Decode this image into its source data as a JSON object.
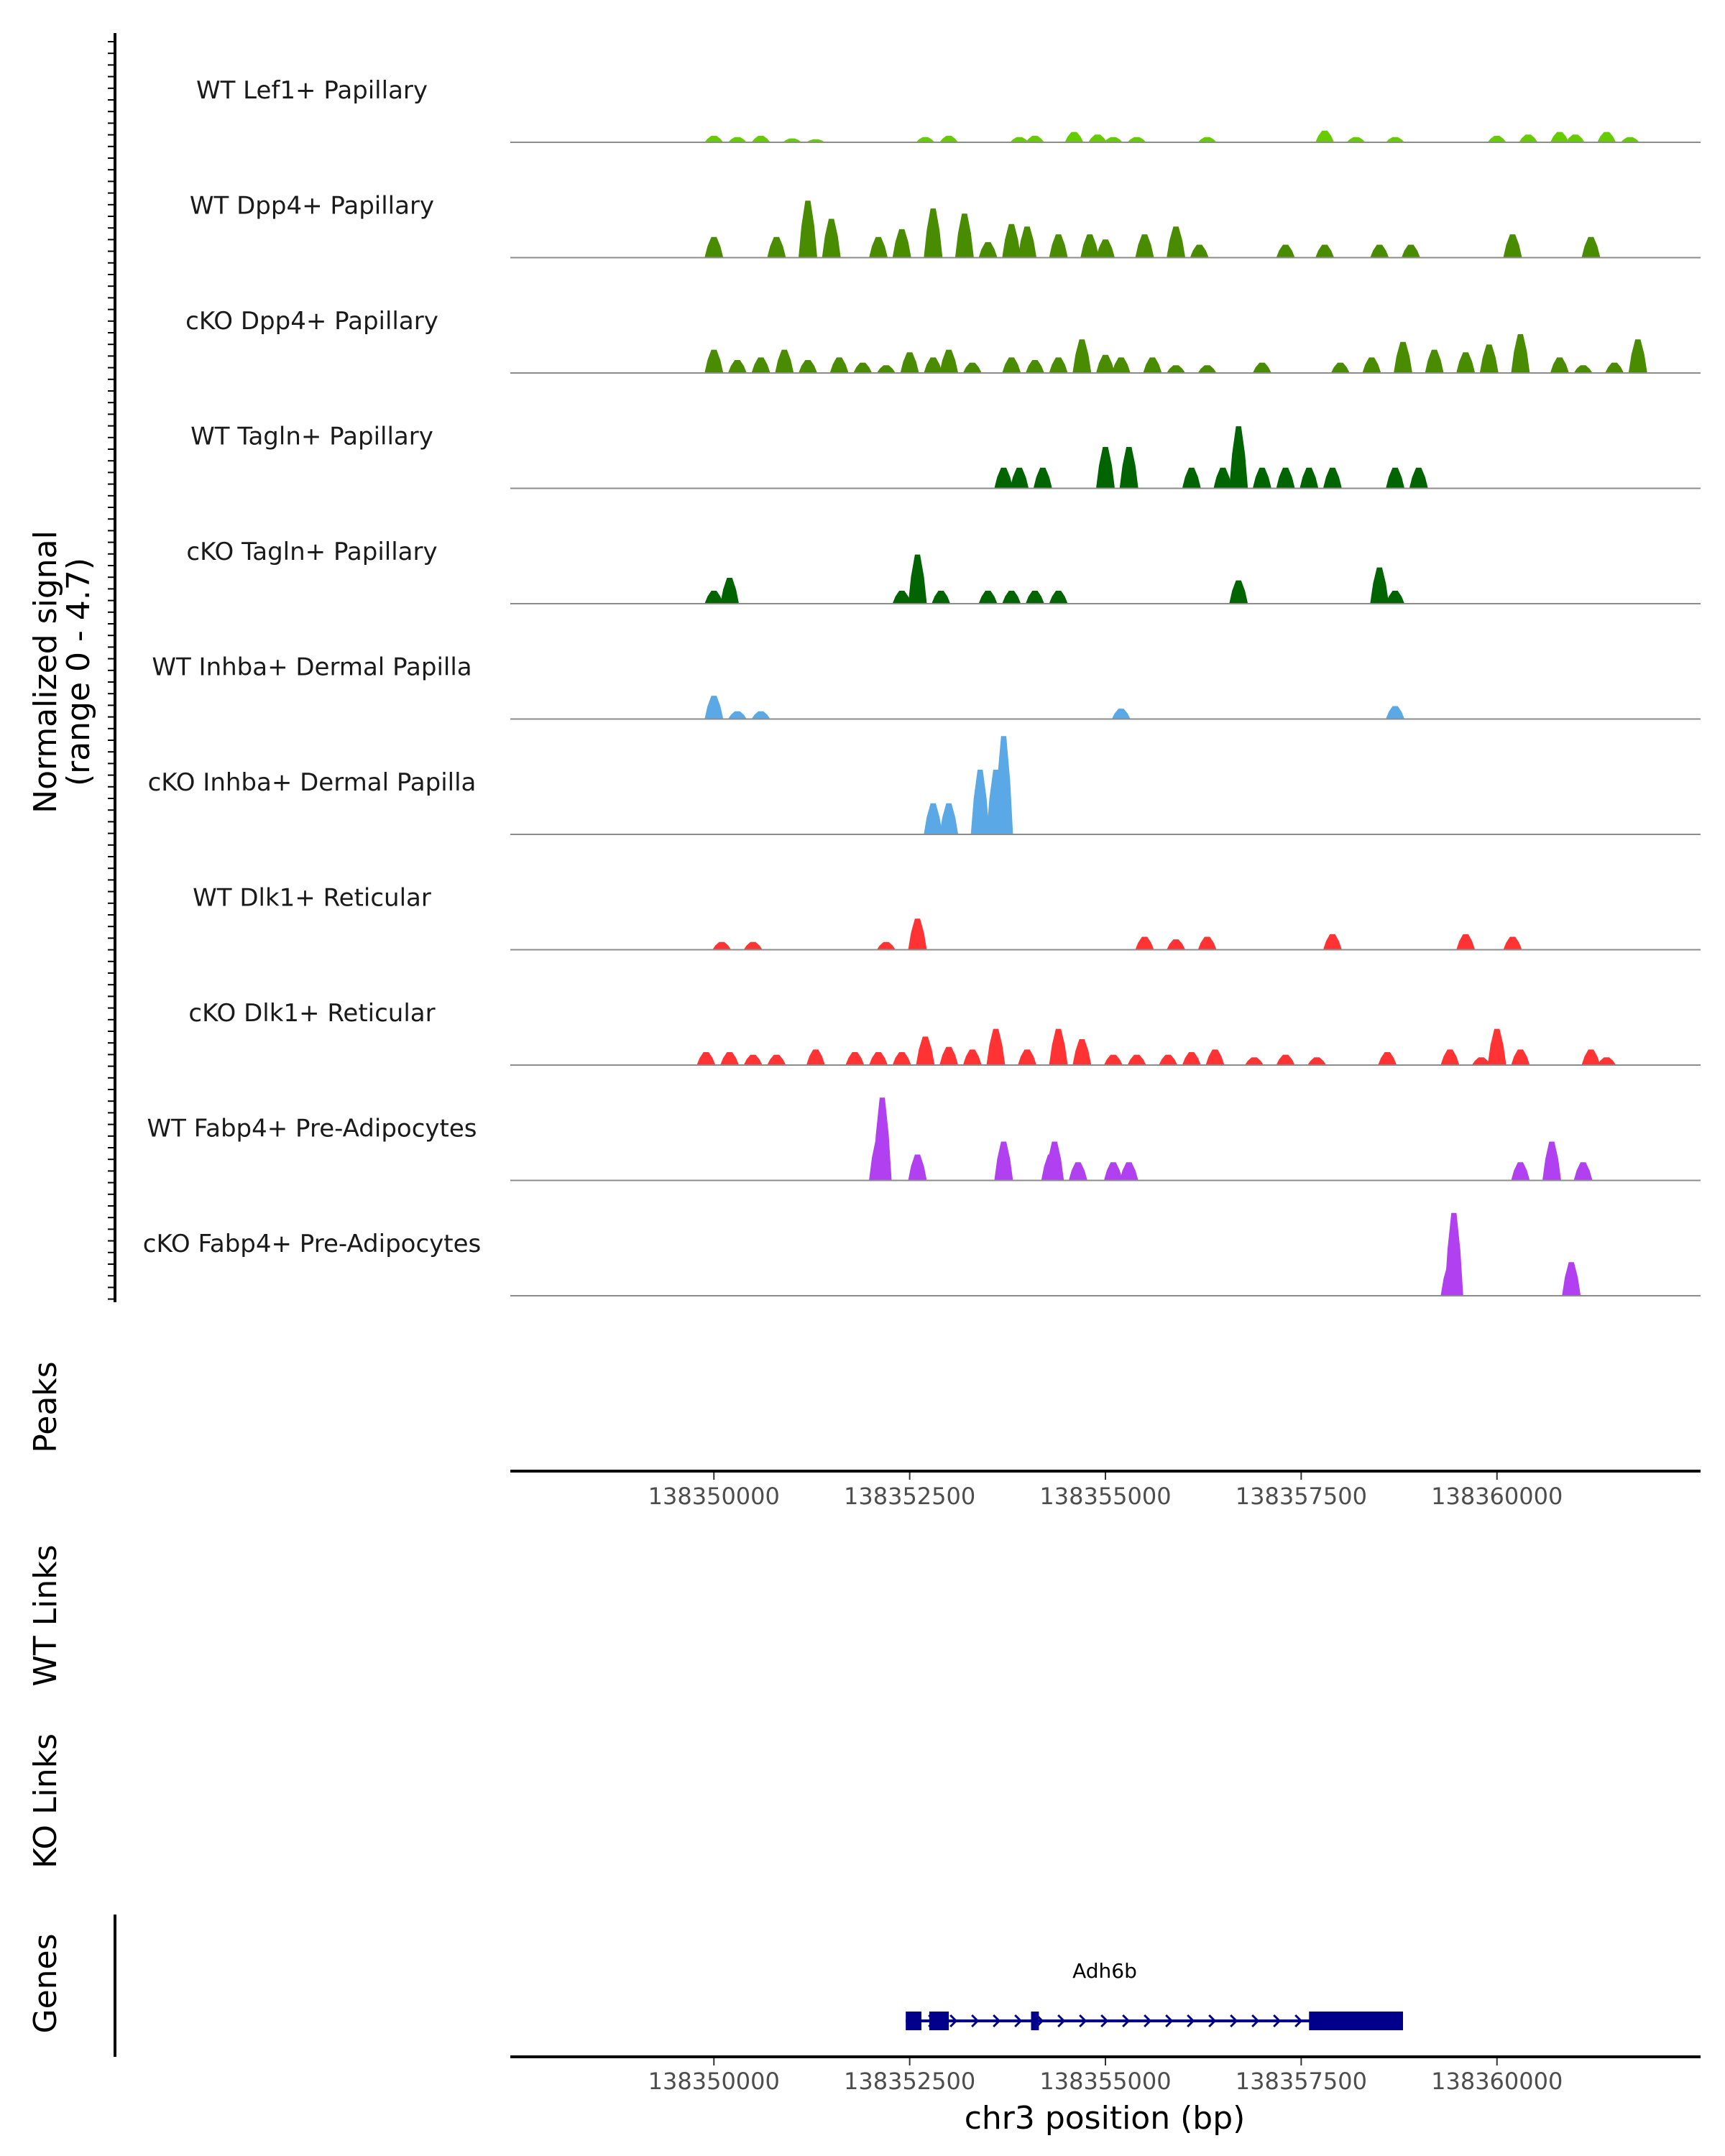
{
  "chart_data": {
    "type": "area",
    "title": "",
    "ylabel_line1": "Normalized signal",
    "ylabel_line2": "(range 0 - 4.7)",
    "yrange": [
      0,
      4.7
    ],
    "xlabel": "chr3 position (bp)",
    "xlim": [
      138347400,
      138362600
    ],
    "x_ticks": [
      138350000,
      138352500,
      138355000,
      138357500,
      138360000
    ],
    "x_tick_labels": [
      "138350000",
      "138352500",
      "138355000",
      "138357500",
      "138360000"
    ],
    "section_labels": {
      "peaks": "Peaks",
      "wt_links": "WT Links",
      "ko_links": "KO Links",
      "genes": "Genes"
    },
    "tracks": [
      {
        "name": "WT Lef1+ Papillary",
        "color": "#66cc00",
        "peaks": [
          [
            138350000,
            0.25
          ],
          [
            138350300,
            0.2
          ],
          [
            138350600,
            0.25
          ],
          [
            138351000,
            0.15
          ],
          [
            138351300,
            0.12
          ],
          [
            138352700,
            0.2
          ],
          [
            138353000,
            0.25
          ],
          [
            138353900,
            0.2
          ],
          [
            138354100,
            0.25
          ],
          [
            138354600,
            0.4
          ],
          [
            138354900,
            0.3
          ],
          [
            138355100,
            0.2
          ],
          [
            138355400,
            0.2
          ],
          [
            138356300,
            0.2
          ],
          [
            138357800,
            0.45
          ],
          [
            138358200,
            0.2
          ],
          [
            138358700,
            0.2
          ],
          [
            138360000,
            0.25
          ],
          [
            138360400,
            0.3
          ],
          [
            138360800,
            0.4
          ],
          [
            138361000,
            0.3
          ],
          [
            138361400,
            0.4
          ],
          [
            138361700,
            0.2
          ]
        ]
      },
      {
        "name": "WT Dpp4+ Papillary",
        "color": "#4a8c00",
        "peaks": [
          [
            138350000,
            0.8
          ],
          [
            138350800,
            0.8
          ],
          [
            138351200,
            2.2
          ],
          [
            138351500,
            1.5
          ],
          [
            138352100,
            0.8
          ],
          [
            138352400,
            1.1
          ],
          [
            138352800,
            1.9
          ],
          [
            138353200,
            1.7
          ],
          [
            138353500,
            0.6
          ],
          [
            138353800,
            1.3
          ],
          [
            138354000,
            1.2
          ],
          [
            138354400,
            0.9
          ],
          [
            138354800,
            0.9
          ],
          [
            138355000,
            0.7
          ],
          [
            138355500,
            0.9
          ],
          [
            138355900,
            1.2
          ],
          [
            138356200,
            0.5
          ],
          [
            138357300,
            0.5
          ],
          [
            138357800,
            0.5
          ],
          [
            138358500,
            0.5
          ],
          [
            138358900,
            0.5
          ],
          [
            138360200,
            0.9
          ],
          [
            138361200,
            0.8
          ]
        ]
      },
      {
        "name": "cKO Dpp4+ Papillary",
        "color": "#4a8c00",
        "peaks": [
          [
            138350000,
            0.9
          ],
          [
            138350300,
            0.5
          ],
          [
            138350600,
            0.6
          ],
          [
            138350900,
            0.9
          ],
          [
            138351200,
            0.5
          ],
          [
            138351600,
            0.6
          ],
          [
            138351900,
            0.4
          ],
          [
            138352200,
            0.3
          ],
          [
            138352500,
            0.8
          ],
          [
            138352800,
            0.6
          ],
          [
            138353000,
            0.9
          ],
          [
            138353300,
            0.4
          ],
          [
            138353800,
            0.6
          ],
          [
            138354100,
            0.5
          ],
          [
            138354400,
            0.6
          ],
          [
            138354700,
            1.3
          ],
          [
            138355000,
            0.7
          ],
          [
            138355200,
            0.6
          ],
          [
            138355600,
            0.6
          ],
          [
            138355900,
            0.3
          ],
          [
            138356300,
            0.3
          ],
          [
            138357000,
            0.4
          ],
          [
            138358000,
            0.4
          ],
          [
            138358400,
            0.6
          ],
          [
            138358800,
            1.2
          ],
          [
            138359200,
            0.9
          ],
          [
            138359600,
            0.8
          ],
          [
            138359900,
            1.1
          ],
          [
            138360300,
            1.5
          ],
          [
            138360800,
            0.6
          ],
          [
            138361100,
            0.3
          ],
          [
            138361500,
            0.4
          ],
          [
            138361800,
            1.3
          ]
        ]
      },
      {
        "name": "WT Tagln+ Papillary",
        "color": "#006400",
        "peaks": [
          [
            138353700,
            0.8
          ],
          [
            138353900,
            0.8
          ],
          [
            138354200,
            0.8
          ],
          [
            138355000,
            1.6
          ],
          [
            138355300,
            1.6
          ],
          [
            138356100,
            0.8
          ],
          [
            138356500,
            0.8
          ],
          [
            138356700,
            2.4
          ],
          [
            138357000,
            0.8
          ],
          [
            138357300,
            0.8
          ],
          [
            138357600,
            0.8
          ],
          [
            138357900,
            0.8
          ],
          [
            138358700,
            0.8
          ],
          [
            138359000,
            0.8
          ]
        ]
      },
      {
        "name": "cKO Tagln+ Papillary",
        "color": "#006400",
        "peaks": [
          [
            138350000,
            0.5
          ],
          [
            138350200,
            1.0
          ],
          [
            138352400,
            0.5
          ],
          [
            138352600,
            1.9
          ],
          [
            138352900,
            0.5
          ],
          [
            138353500,
            0.5
          ],
          [
            138353800,
            0.5
          ],
          [
            138354100,
            0.5
          ],
          [
            138354400,
            0.5
          ],
          [
            138356700,
            0.9
          ],
          [
            138358500,
            1.4
          ],
          [
            138358700,
            0.5
          ]
        ]
      },
      {
        "name": "WT Inhba+ Dermal Papilla",
        "color": "#5aa9e6",
        "peaks": [
          [
            138350000,
            0.9
          ],
          [
            138350300,
            0.3
          ],
          [
            138350600,
            0.3
          ],
          [
            138355200,
            0.4
          ],
          [
            138358700,
            0.5
          ]
        ]
      },
      {
        "name": "cKO Inhba+ Dermal Papilla",
        "color": "#5aa9e6",
        "peaks": [
          [
            138352800,
            1.2
          ],
          [
            138353000,
            1.2
          ],
          [
            138353400,
            2.5
          ],
          [
            138353600,
            2.5
          ],
          [
            138353700,
            3.8
          ]
        ]
      },
      {
        "name": "WT Dlk1+ Reticular",
        "color": "#ff3333",
        "peaks": [
          [
            138350100,
            0.3
          ],
          [
            138350500,
            0.3
          ],
          [
            138352200,
            0.3
          ],
          [
            138352600,
            1.2
          ],
          [
            138355500,
            0.5
          ],
          [
            138355900,
            0.4
          ],
          [
            138356300,
            0.5
          ],
          [
            138357900,
            0.6
          ],
          [
            138359600,
            0.6
          ],
          [
            138360200,
            0.5
          ]
        ]
      },
      {
        "name": "cKO Dlk1+ Reticular",
        "color": "#ff3333",
        "peaks": [
          [
            138349900,
            0.5
          ],
          [
            138350200,
            0.5
          ],
          [
            138350500,
            0.4
          ],
          [
            138350800,
            0.4
          ],
          [
            138351300,
            0.6
          ],
          [
            138351800,
            0.5
          ],
          [
            138352100,
            0.5
          ],
          [
            138352400,
            0.5
          ],
          [
            138352700,
            1.1
          ],
          [
            138353000,
            0.7
          ],
          [
            138353300,
            0.6
          ],
          [
            138353600,
            1.4
          ],
          [
            138354000,
            0.6
          ],
          [
            138354400,
            1.4
          ],
          [
            138354700,
            1.0
          ],
          [
            138355100,
            0.4
          ],
          [
            138355400,
            0.4
          ],
          [
            138355800,
            0.4
          ],
          [
            138356100,
            0.5
          ],
          [
            138356400,
            0.6
          ],
          [
            138356900,
            0.3
          ],
          [
            138357300,
            0.4
          ],
          [
            138357700,
            0.3
          ],
          [
            138358600,
            0.5
          ],
          [
            138359400,
            0.6
          ],
          [
            138359800,
            0.3
          ],
          [
            138360000,
            1.4
          ],
          [
            138360300,
            0.6
          ],
          [
            138361200,
            0.6
          ],
          [
            138361400,
            0.3
          ]
        ]
      },
      {
        "name": "WT Fabp4+ Pre-Adipocytes",
        "color": "#b040f0",
        "peaks": [
          [
            138352100,
            1.6
          ],
          [
            138352150,
            3.2
          ],
          [
            138352600,
            1.0
          ],
          [
            138353700,
            1.5
          ],
          [
            138354300,
            1.0
          ],
          [
            138354350,
            1.5
          ],
          [
            138354650,
            0.7
          ],
          [
            138355100,
            0.7
          ],
          [
            138355300,
            0.7
          ],
          [
            138360300,
            0.7
          ],
          [
            138360700,
            1.5
          ],
          [
            138361100,
            0.7
          ]
        ]
      },
      {
        "name": "cKO Fabp4+ Pre-Adipocytes",
        "color": "#b040f0",
        "peaks": [
          [
            138359400,
            1.2
          ],
          [
            138359450,
            3.2
          ],
          [
            138360950,
            1.3
          ]
        ]
      }
    ],
    "gene": {
      "name": "Adh6b",
      "color": "#00008b",
      "strand": "+",
      "start": 138352450,
      "end": 138358800,
      "exons": [
        [
          138352450,
          138352650
        ],
        [
          138352750,
          138353000
        ],
        [
          138354050,
          138354150
        ],
        [
          138357600,
          138358800
        ]
      ]
    }
  }
}
